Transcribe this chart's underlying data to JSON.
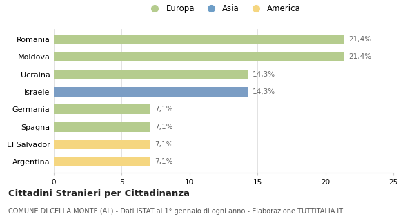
{
  "categories": [
    "Romania",
    "Moldova",
    "Ucraina",
    "Israele",
    "Germania",
    "Spagna",
    "El Salvador",
    "Argentina"
  ],
  "values": [
    21.4,
    21.4,
    14.3,
    14.3,
    7.1,
    7.1,
    7.1,
    7.1
  ],
  "labels": [
    "21,4%",
    "21,4%",
    "14,3%",
    "14,3%",
    "7,1%",
    "7,1%",
    "7,1%",
    "7,1%"
  ],
  "colors": [
    "#b5cc8e",
    "#b5cc8e",
    "#b5cc8e",
    "#7b9dc4",
    "#b5cc8e",
    "#b5cc8e",
    "#f5d680",
    "#f5d680"
  ],
  "legend_items": [
    {
      "label": "Europa",
      "color": "#b5cc8e"
    },
    {
      "label": "Asia",
      "color": "#6e9ec7"
    },
    {
      "label": "America",
      "color": "#f5d680"
    }
  ],
  "xlim": [
    0,
    25
  ],
  "xticks": [
    0,
    5,
    10,
    15,
    20,
    25
  ],
  "title": "Cittadini Stranieri per Cittadinanza",
  "subtitle": "COMUNE DI CELLA MONTE (AL) - Dati ISTAT al 1° gennaio di ogni anno - Elaborazione TUTTITALIA.IT",
  "background_color": "#ffffff",
  "bar_height": 0.55,
  "label_fontsize": 7.5,
  "ytick_fontsize": 8,
  "xtick_fontsize": 7.5,
  "title_fontsize": 9.5,
  "subtitle_fontsize": 7
}
